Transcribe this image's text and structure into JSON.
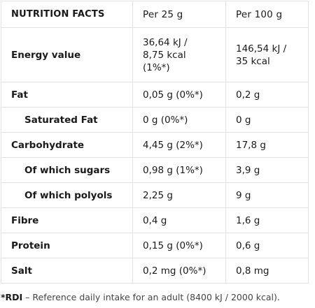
{
  "header": {
    "col1": "NUTRITION FACTS",
    "col2": "Per 25 g",
    "col3": "Per 100 g"
  },
  "rows": [
    {
      "label": "Energy value",
      "sub": false,
      "per25": "36,64 kJ /\n8,75 kcal\n(1%*)",
      "per100": "146,54 kJ /\n35 kcal"
    },
    {
      "label": "Fat",
      "sub": false,
      "per25": "0,05 g (0%*)",
      "per100": "0,2 g"
    },
    {
      "label": "Saturated Fat",
      "sub": true,
      "per25": "0 g (0%*)",
      "per100": "0 g"
    },
    {
      "label": "Carbohydrate",
      "sub": false,
      "per25": "4,45 g (2%*)",
      "per100": "17,8 g"
    },
    {
      "label": "Of which sugars",
      "sub": true,
      "per25": "0,98 g (1%*)",
      "per100": "3,9 g"
    },
    {
      "label": "Of which polyols",
      "sub": true,
      "per25": "2,25 g",
      "per100": "9 g"
    },
    {
      "label": "Fibre",
      "sub": false,
      "per25": "0,4 g",
      "per100": "1,6 g"
    },
    {
      "label": "Protein",
      "sub": false,
      "per25": "0,15 g (0%*)",
      "per100": "0,6 g"
    },
    {
      "label": "Salt",
      "sub": false,
      "per25": "0,2 mg (0%*)",
      "per100": "0,8 mg"
    }
  ],
  "footnote": {
    "marker": "*RDI",
    "text": " – Reference daily intake for an adult (8400 kJ / 2000 kcal)."
  }
}
